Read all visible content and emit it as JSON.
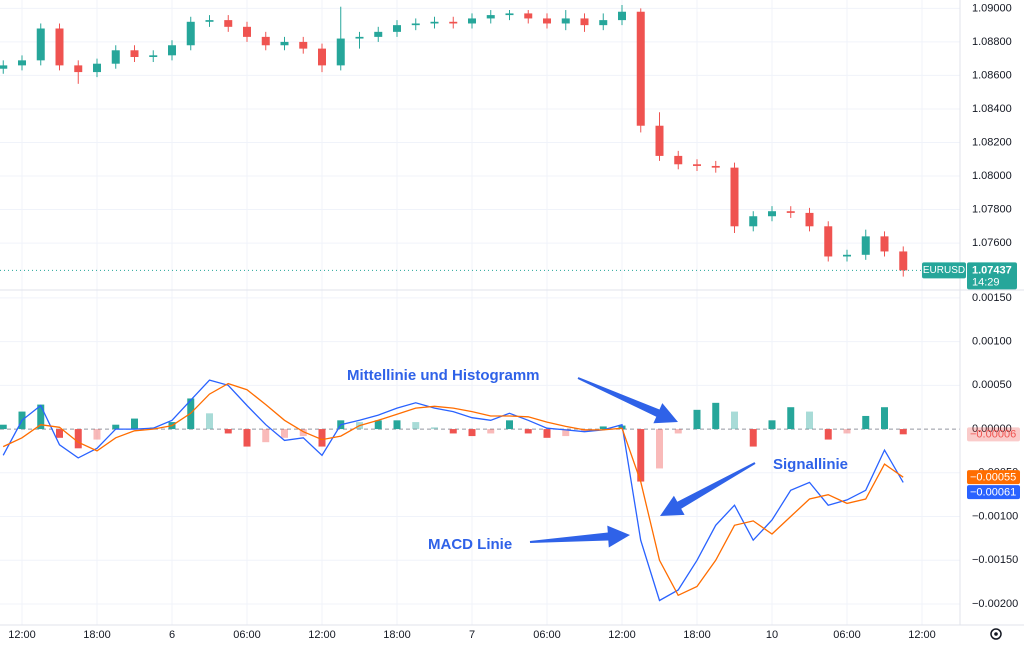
{
  "chart_data": [
    {
      "type": "candlestick",
      "symbol": "EURUSD",
      "countdown": "14:29",
      "last_value": {
        "value": 1.07437,
        "label": "1.07437"
      },
      "up_color": "#26a69a",
      "down_color": "#ef5350",
      "x": [
        -1.5,
        0,
        1.5,
        3,
        4.5,
        6,
        7.5,
        9,
        10.5,
        12,
        13.5,
        15,
        16.5,
        18,
        19.5,
        21,
        22.5,
        24,
        25.5,
        27,
        28.5,
        30,
        31.5,
        33,
        34.5,
        36,
        37.5,
        39,
        40.5,
        42,
        43.5,
        45,
        46.5,
        48,
        49.5,
        51,
        52.5,
        54,
        55.5,
        57,
        58.5,
        60,
        61.5,
        63,
        64.5,
        66,
        67.5,
        69,
        70.5
      ],
      "open": [
        1.0864,
        1.0866,
        1.0869,
        1.0888,
        1.0866,
        1.0862,
        1.0867,
        1.0875,
        1.0871,
        1.0872,
        1.0878,
        1.0892,
        1.0893,
        1.0889,
        1.0883,
        1.0878,
        1.088,
        1.0876,
        1.0866,
        1.0882,
        1.0883,
        1.0886,
        1.089,
        1.0891,
        1.0892,
        1.0891,
        1.0894,
        1.0896,
        1.0897,
        1.0894,
        1.0891,
        1.0894,
        1.089,
        1.0893,
        1.0898,
        1.083,
        1.0812,
        1.0807,
        1.0806,
        1.0805,
        1.077,
        1.0776,
        1.0779,
        1.0778,
        1.077,
        1.0752,
        1.0753,
        1.0764,
        1.0755
      ],
      "high": [
        1.0869,
        1.0872,
        1.0891,
        1.0891,
        1.0869,
        1.087,
        1.0878,
        1.0878,
        1.0875,
        1.0881,
        1.0895,
        1.0896,
        1.0896,
        1.0892,
        1.0886,
        1.0883,
        1.0883,
        1.0879,
        1.0901,
        1.0886,
        1.0889,
        1.0893,
        1.0894,
        1.0895,
        1.0895,
        1.0897,
        1.0899,
        1.0899,
        1.0899,
        1.0897,
        1.0899,
        1.0897,
        1.0897,
        1.0902,
        1.09,
        1.0838,
        1.0815,
        1.081,
        1.0809,
        1.0808,
        1.0779,
        1.0782,
        1.0782,
        1.0781,
        1.0773,
        1.0756,
        1.0768,
        1.0767,
        1.0758
      ],
      "low": [
        1.0861,
        1.0863,
        1.0866,
        1.0863,
        1.0855,
        1.0859,
        1.0864,
        1.0868,
        1.0868,
        1.0869,
        1.0875,
        1.0889,
        1.0886,
        1.088,
        1.0875,
        1.0875,
        1.0873,
        1.0862,
        1.0863,
        1.0876,
        1.088,
        1.0883,
        1.0887,
        1.0888,
        1.0888,
        1.0888,
        1.0891,
        1.0893,
        1.0891,
        1.0888,
        1.0887,
        1.0886,
        1.0887,
        1.089,
        1.0826,
        1.0809,
        1.0804,
        1.0803,
        1.0802,
        1.0766,
        1.0767,
        1.0773,
        1.0775,
        1.0767,
        1.0749,
        1.0749,
        1.075,
        1.0752,
        1.074
      ],
      "close": [
        1.0866,
        1.0869,
        1.0888,
        1.0866,
        1.0862,
        1.0867,
        1.0875,
        1.0871,
        1.0872,
        1.0878,
        1.0892,
        1.0893,
        1.0889,
        1.0883,
        1.0878,
        1.088,
        1.0876,
        1.0866,
        1.0882,
        1.0883,
        1.0886,
        1.089,
        1.0891,
        1.0892,
        1.0891,
        1.0894,
        1.0896,
        1.0897,
        1.0894,
        1.0891,
        1.0894,
        1.089,
        1.0893,
        1.0898,
        1.083,
        1.0812,
        1.0807,
        1.0806,
        1.0805,
        1.077,
        1.0776,
        1.0779,
        1.0778,
        1.077,
        1.0752,
        1.0753,
        1.0764,
        1.0755,
        1.07437
      ],
      "xlim": [
        -1.76,
        75.04
      ],
      "ylim": [
        1.0732,
        1.0905
      ],
      "yticks": [
        {
          "value": 1.076,
          "label": "1.07600"
        },
        {
          "value": 1.078,
          "label": "1.07800"
        },
        {
          "value": 1.08,
          "label": "1.08000"
        },
        {
          "value": 1.082,
          "label": "1.08200"
        },
        {
          "value": 1.084,
          "label": "1.08400"
        },
        {
          "value": 1.086,
          "label": "1.08600"
        },
        {
          "value": 1.088,
          "label": "1.08800"
        },
        {
          "value": 1.09,
          "label": "1.09000"
        }
      ],
      "grid": true
    },
    {
      "type": "macd",
      "annotations": [
        "Mittellinie und Histogramm",
        "Signallinie",
        "MACD Linie"
      ],
      "x": [
        -1.5,
        0,
        1.5,
        3,
        4.5,
        6,
        7.5,
        9,
        10.5,
        12,
        13.5,
        15,
        16.5,
        18,
        19.5,
        21,
        22.5,
        24,
        25.5,
        27,
        28.5,
        30,
        31.5,
        33,
        34.5,
        36,
        37.5,
        39,
        40.5,
        42,
        43.5,
        45,
        46.5,
        48,
        49.5,
        51,
        52.5,
        54,
        55.5,
        57,
        58.5,
        60,
        61.5,
        63,
        64.5,
        66,
        67.5,
        69,
        70.5
      ],
      "series": [
        {
          "kind": "histogram",
          "color": "#26a69a",
          "neg_color": "#ef5350",
          "last_label": {
            "value": -6e-05,
            "label": "−0.00006"
          },
          "values": [
            5e-05,
            0.0002,
            0.00028,
            -0.0001,
            -0.00022,
            -0.00012,
            5e-05,
            0.00012,
            2e-05,
            8e-05,
            0.00035,
            0.00018,
            -5e-05,
            -0.0002,
            -0.00015,
            -0.0001,
            -8e-05,
            -0.0002,
            0.0001,
            8e-05,
            0.0001,
            0.0001,
            8e-05,
            2e-05,
            -5e-05,
            -8e-05,
            -5e-05,
            0.0001,
            -5e-05,
            -0.0001,
            -8e-05,
            -3e-05,
            3e-05,
            4e-05,
            -0.0006,
            -0.00045,
            -5e-05,
            0.00022,
            0.0003,
            0.0002,
            -0.0002,
            0.0001,
            0.00025,
            0.0002,
            -0.00012,
            -5e-05,
            0.00015,
            0.00025,
            -6e-05
          ]
        },
        {
          "kind": "line",
          "color": "#2962ff",
          "last_label": {
            "value": -0.00061,
            "label": "−0.00061"
          },
          "values": [
            -0.0003,
            0.0001,
            0.00027,
            -0.00018,
            -0.00033,
            -0.00022,
            0,
            0,
            1e-05,
            0.0001,
            0.00033,
            0.00056,
            0.0005,
            0.00027,
            5e-05,
            -0.00013,
            -0.0001,
            -0.0003,
            5e-05,
            0.0001,
            0.00016,
            0.00024,
            0.0003,
            0.00024,
            0.0002,
            0.00013,
            0.0001,
            0.00018,
            0.0001,
            1e-05,
            -1e-05,
            -3e-05,
            -1e-05,
            5e-05,
            -0.00127,
            -0.00196,
            -0.00184,
            -0.0015,
            -0.0011,
            -0.00087,
            -0.00127,
            -0.00104,
            -0.0007,
            -0.00061,
            -0.00087,
            -0.00081,
            -0.0007,
            -0.00024,
            -0.00061
          ]
        },
        {
          "kind": "line",
          "color": "#ff6d00",
          "last_label": {
            "value": -0.00055,
            "label": "−0.00055"
          },
          "values": [
            -0.0002,
            -0.0001,
            5e-05,
            2e-05,
            -0.00015,
            -0.00025,
            -0.0001,
            -2e-05,
            0,
            4e-05,
            0.00018,
            0.0004,
            0.00052,
            0.00045,
            0.00028,
            0.0001,
            -3e-05,
            -0.00012,
            -8e-05,
            4e-05,
            0.0001,
            0.00017,
            0.00024,
            0.00026,
            0.00024,
            0.0002,
            0.00015,
            0.00015,
            0.00014,
            8e-05,
            3e-05,
            -1e-05,
            -1e-05,
            1e-05,
            -0.0006,
            -0.0015,
            -0.0019,
            -0.0018,
            -0.0015,
            -0.0011,
            -0.00105,
            -0.0012,
            -0.001,
            -0.0008,
            -0.00075,
            -0.00085,
            -0.0008,
            -0.0004,
            -0.00055
          ]
        }
      ],
      "xlim": [
        -1.76,
        75.04
      ],
      "xticks": [
        {
          "value": 0,
          "label": "12:00"
        },
        {
          "value": 6,
          "label": "18:00"
        },
        {
          "value": 12,
          "label": "6"
        },
        {
          "value": 18,
          "label": "06:00"
        },
        {
          "value": 24,
          "label": "12:00"
        },
        {
          "value": 30,
          "label": "18:00"
        },
        {
          "value": 36,
          "label": "7"
        },
        {
          "value": 42,
          "label": "06:00"
        },
        {
          "value": 48,
          "label": "12:00"
        },
        {
          "value": 54,
          "label": "18:00"
        },
        {
          "value": 60,
          "label": "10"
        },
        {
          "value": 66,
          "label": "06:00"
        },
        {
          "value": 72,
          "label": "12:00"
        }
      ],
      "ylim": [
        -0.00224,
        0.00159
      ],
      "yticks": [
        {
          "value": -0.002,
          "label": "−0.00200"
        },
        {
          "value": -0.0015,
          "label": "−0.00150"
        },
        {
          "value": -0.001,
          "label": "−0.00100"
        },
        {
          "value": -0.0005,
          "label": "−0.00050"
        },
        {
          "value": 0,
          "label": "0.00000"
        },
        {
          "value": 0.0005,
          "label": "0.00050"
        },
        {
          "value": 0.001,
          "label": "0.00100"
        },
        {
          "value": 0.0015,
          "label": "0.00150"
        }
      ],
      "grid": true
    }
  ]
}
